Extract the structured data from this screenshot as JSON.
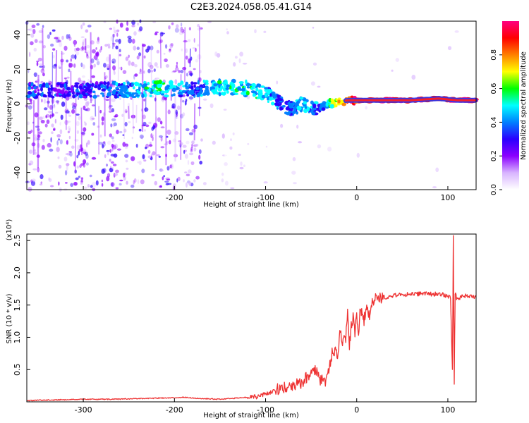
{
  "chart_data": [
    {
      "type": "heatmap",
      "title": "C2E3.2024.058.05.41.G14",
      "xlabel": "Height of straight line (km)",
      "ylabel": "Frequency (Hz)",
      "xlim": [
        -362,
        131
      ],
      "ylim": [
        -50,
        48
      ],
      "x_ticks": [
        -300,
        -200,
        -100,
        0,
        100
      ],
      "y_ticks": [
        -40,
        -20,
        0,
        20,
        40
      ],
      "colorbar": {
        "label": "Normalized spectral amplitude",
        "range": [
          0,
          1
        ],
        "ticks": [
          "0.0",
          "0.2",
          "0.4",
          "0.6",
          "0.8"
        ],
        "colors": [
          "#ffffff",
          "#d8b4ff",
          "#8b00ff",
          "#2a00ff",
          "#0080ff",
          "#00ffff",
          "#00ff00",
          "#ffff00",
          "#ff8000",
          "#ff0000",
          "#ff0080"
        ]
      },
      "ridge": {
        "x": [
          -330,
          -300,
          -270,
          -240,
          -220,
          -200,
          -180,
          -160,
          -140,
          -120,
          -100,
          -90,
          -80,
          -70,
          -60,
          -50,
          -40,
          -30,
          -20,
          -10,
          0,
          20,
          60,
          90,
          110,
          131
        ],
        "frequency": [
          8,
          8,
          8,
          8,
          9,
          8,
          8,
          10,
          9,
          9,
          6,
          2,
          -1,
          -3,
          0,
          -3,
          -2,
          0,
          1,
          2,
          2,
          2,
          2,
          3,
          2,
          2
        ],
        "amplitude": [
          0.3,
          0.3,
          0.35,
          0.45,
          0.5,
          0.45,
          0.35,
          0.45,
          0.5,
          0.5,
          0.45,
          0.4,
          0.3,
          0.4,
          0.45,
          0.4,
          0.35,
          0.55,
          0.75,
          0.85,
          0.9,
          0.95,
          0.95,
          0.9,
          0.95,
          0.95
        ]
      }
    },
    {
      "type": "line",
      "xlabel": "Height of straight line (km)",
      "ylabel": "SNR (10 * v/v)",
      "y_multiplier": "(x10⁴)",
      "xlim": [
        -362,
        131
      ],
      "ylim": [
        0,
        2.6
      ],
      "x_ticks": [
        -300,
        -200,
        -100,
        0,
        100
      ],
      "y_ticks": [
        0.5,
        1.0,
        1.5,
        2.0,
        2.5
      ],
      "series": [
        {
          "color": "#ee3333",
          "x": [
            -362,
            -330,
            -300,
            -270,
            -240,
            -210,
            -190,
            -170,
            -150,
            -130,
            -110,
            -100,
            -90,
            -80,
            -70,
            -60,
            -50,
            -45,
            -40,
            -35,
            -30,
            -27,
            -24,
            -21,
            -18,
            -15,
            -12,
            -10,
            -8,
            -6,
            -4,
            -2,
            0,
            2,
            4,
            6,
            8,
            10,
            12,
            14,
            16,
            18,
            20,
            25,
            30,
            40,
            50,
            60,
            70,
            80,
            90,
            95,
            100,
            103,
            105,
            106,
            107,
            108,
            110,
            115,
            120,
            131
          ],
          "y": [
            0.02,
            0.03,
            0.04,
            0.04,
            0.05,
            0.06,
            0.07,
            0.05,
            0.04,
            0.06,
            0.08,
            0.12,
            0.18,
            0.22,
            0.25,
            0.3,
            0.45,
            0.5,
            0.35,
            0.3,
            0.55,
            0.75,
            0.8,
            0.7,
            1.1,
            0.9,
            1.0,
            1.4,
            0.85,
            1.2,
            1.3,
            1.05,
            1.35,
            1.1,
            1.45,
            1.35,
            1.25,
            1.45,
            1.4,
            1.35,
            1.55,
            1.55,
            1.6,
            1.6,
            1.62,
            1.65,
            1.66,
            1.67,
            1.67,
            1.67,
            1.67,
            1.66,
            1.64,
            1.62,
            0.5,
            2.55,
            0.3,
            1.7,
            1.58,
            1.63,
            1.64,
            1.62
          ]
        }
      ]
    }
  ]
}
